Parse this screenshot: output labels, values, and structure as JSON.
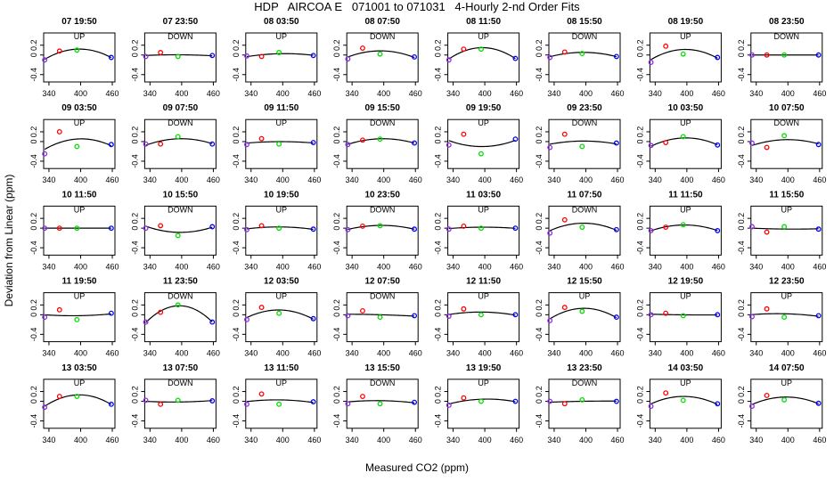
{
  "figure": {
    "title": "HDP   AIRCOA E   071001 to 071031   4-Hourly 2-nd Order Fits",
    "xlabel": "Measured CO2 (ppm)",
    "ylabel": "Deviation from Linear (ppm)"
  },
  "chart_data": {
    "type": "scatter",
    "xlim": [
      330,
      465
    ],
    "ylim": [
      -0.55,
      0.45
    ],
    "xticks": [
      340,
      400,
      460
    ],
    "xtick_labels": [
      "340",
      "400",
      "460"
    ],
    "yticks": [
      -0.4,
      0.0,
      0.2
    ],
    "ytick_labels": [
      "-0.4",
      "0",
      "0.2"
    ],
    "grid": false,
    "marker_colors": {
      "p1": "#8a2be2",
      "p2": "#ff0000",
      "p3": "#00dd00",
      "p4": "#0000ff",
      "fit": "#000000"
    },
    "panels": [
      {
        "label": "07 19:50",
        "dir": "UP",
        "y": [
          -0.1,
          0.08,
          0.1,
          -0.05
        ]
      },
      {
        "label": "07 23:50",
        "dir": "DOWN",
        "y": [
          -0.03,
          0.05,
          -0.03,
          -0.01
        ]
      },
      {
        "label": "08 03:50",
        "dir": "UP",
        "y": [
          -0.02,
          -0.03,
          0.05,
          -0.01
        ]
      },
      {
        "label": "08 07:50",
        "dir": "DOWN",
        "y": [
          -0.08,
          0.14,
          0.02,
          -0.04
        ]
      },
      {
        "label": "08 11:50",
        "dir": "UP",
        "y": [
          -0.1,
          0.12,
          0.12,
          -0.07
        ]
      },
      {
        "label": "08 15:50",
        "dir": "DOWN",
        "y": [
          -0.05,
          0.06,
          0.03,
          -0.03
        ]
      },
      {
        "label": "08 19:50",
        "dir": "UP",
        "y": [
          -0.15,
          0.18,
          0.02,
          -0.05
        ]
      },
      {
        "label": "08 23:50",
        "dir": "DOWN",
        "y": [
          0.0,
          0.0,
          0.0,
          0.0
        ]
      },
      {
        "label": "09 03:50",
        "dir": "UP",
        "y": [
          -0.25,
          0.2,
          -0.1,
          -0.06
        ]
      },
      {
        "label": "09 07:50",
        "dir": "DOWN",
        "y": [
          -0.05,
          -0.05,
          0.1,
          -0.05
        ]
      },
      {
        "label": "09 11:50",
        "dir": "UP",
        "y": [
          -0.06,
          0.06,
          -0.05,
          -0.02
        ]
      },
      {
        "label": "09 15:50",
        "dir": "DOWN",
        "y": [
          -0.06,
          0.03,
          0.05,
          -0.03
        ]
      },
      {
        "label": "09 19:50",
        "dir": "UP",
        "y": [
          -0.07,
          0.15,
          -0.25,
          0.05
        ]
      },
      {
        "label": "09 23:50",
        "dir": "DOWN",
        "y": [
          -0.12,
          0.15,
          -0.1,
          -0.03
        ]
      },
      {
        "label": "10 03:50",
        "dir": "UP",
        "y": [
          -0.08,
          -0.02,
          0.1,
          -0.07
        ]
      },
      {
        "label": "10 07:50",
        "dir": "DOWN",
        "y": [
          -0.03,
          -0.12,
          0.12,
          -0.06
        ]
      },
      {
        "label": "10 11:50",
        "dir": "UP",
        "y": [
          0.0,
          0.0,
          0.0,
          0.0
        ]
      },
      {
        "label": "10 15:50",
        "dir": "DOWN",
        "y": [
          0.0,
          0.05,
          -0.15,
          0.03
        ]
      },
      {
        "label": "10 19:50",
        "dir": "UP",
        "y": [
          -0.03,
          0.05,
          0.0,
          -0.02
        ]
      },
      {
        "label": "10 23:50",
        "dir": "DOWN",
        "y": [
          -0.03,
          0.04,
          0.05,
          -0.02
        ]
      },
      {
        "label": "11 03:50",
        "dir": "UP",
        "y": [
          -0.02,
          0.04,
          0.0,
          0.0
        ]
      },
      {
        "label": "11 07:50",
        "dir": "DOWN",
        "y": [
          -0.1,
          0.17,
          0.02,
          -0.03
        ]
      },
      {
        "label": "11 11:50",
        "dir": "UP",
        "y": [
          -0.05,
          0.02,
          0.07,
          -0.05
        ]
      },
      {
        "label": "11 15:50",
        "dir": "UP",
        "y": [
          0.03,
          -0.08,
          0.03,
          -0.02
        ]
      },
      {
        "label": "11 19:50",
        "dir": "UP",
        "y": [
          -0.05,
          0.1,
          -0.1,
          0.03
        ]
      },
      {
        "label": "11 23:50",
        "dir": "DOWN",
        "y": [
          -0.15,
          0.05,
          0.2,
          -0.15
        ]
      },
      {
        "label": "12 03:50",
        "dir": "UP",
        "y": [
          -0.1,
          0.15,
          0.03,
          -0.08
        ]
      },
      {
        "label": "12 07:50",
        "dir": "DOWN",
        "y": [
          -0.02,
          0.08,
          -0.05,
          -0.02
        ]
      },
      {
        "label": "12 11:50",
        "dir": "UP",
        "y": [
          -0.03,
          0.12,
          0.0,
          0.0
        ]
      },
      {
        "label": "12 15:50",
        "dir": "UP",
        "y": [
          -0.12,
          0.15,
          0.07,
          -0.05
        ]
      },
      {
        "label": "12 19:50",
        "dir": "UP",
        "y": [
          0.0,
          0.03,
          -0.02,
          0.0
        ]
      },
      {
        "label": "12 23:50",
        "dir": "UP",
        "y": [
          -0.04,
          0.12,
          -0.05,
          -0.02
        ]
      },
      {
        "label": "13 03:50",
        "dir": "UP",
        "y": [
          -0.12,
          0.1,
          0.1,
          -0.06
        ]
      },
      {
        "label": "13 07:50",
        "dir": "DOWN",
        "y": [
          0.02,
          -0.06,
          0.02,
          0.01
        ]
      },
      {
        "label": "13 11:50",
        "dir": "UP",
        "y": [
          -0.06,
          0.15,
          -0.06,
          -0.01
        ]
      },
      {
        "label": "13 15:50",
        "dir": "DOWN",
        "y": [
          -0.05,
          0.1,
          -0.05,
          -0.02
        ]
      },
      {
        "label": "13 19:50",
        "dir": "UP",
        "y": [
          -0.08,
          0.07,
          0.0,
          0.0
        ]
      },
      {
        "label": "13 23:50",
        "dir": "DOWN",
        "y": [
          0.0,
          -0.05,
          0.03,
          0.0
        ]
      },
      {
        "label": "14 03:50",
        "dir": "UP",
        "y": [
          -0.1,
          0.17,
          0.02,
          -0.05
        ]
      },
      {
        "label": "14 07:50",
        "dir": "UP",
        "y": [
          -0.1,
          0.12,
          0.03,
          -0.04
        ]
      }
    ],
    "x_points": [
      332,
      360,
      393,
      458
    ]
  }
}
